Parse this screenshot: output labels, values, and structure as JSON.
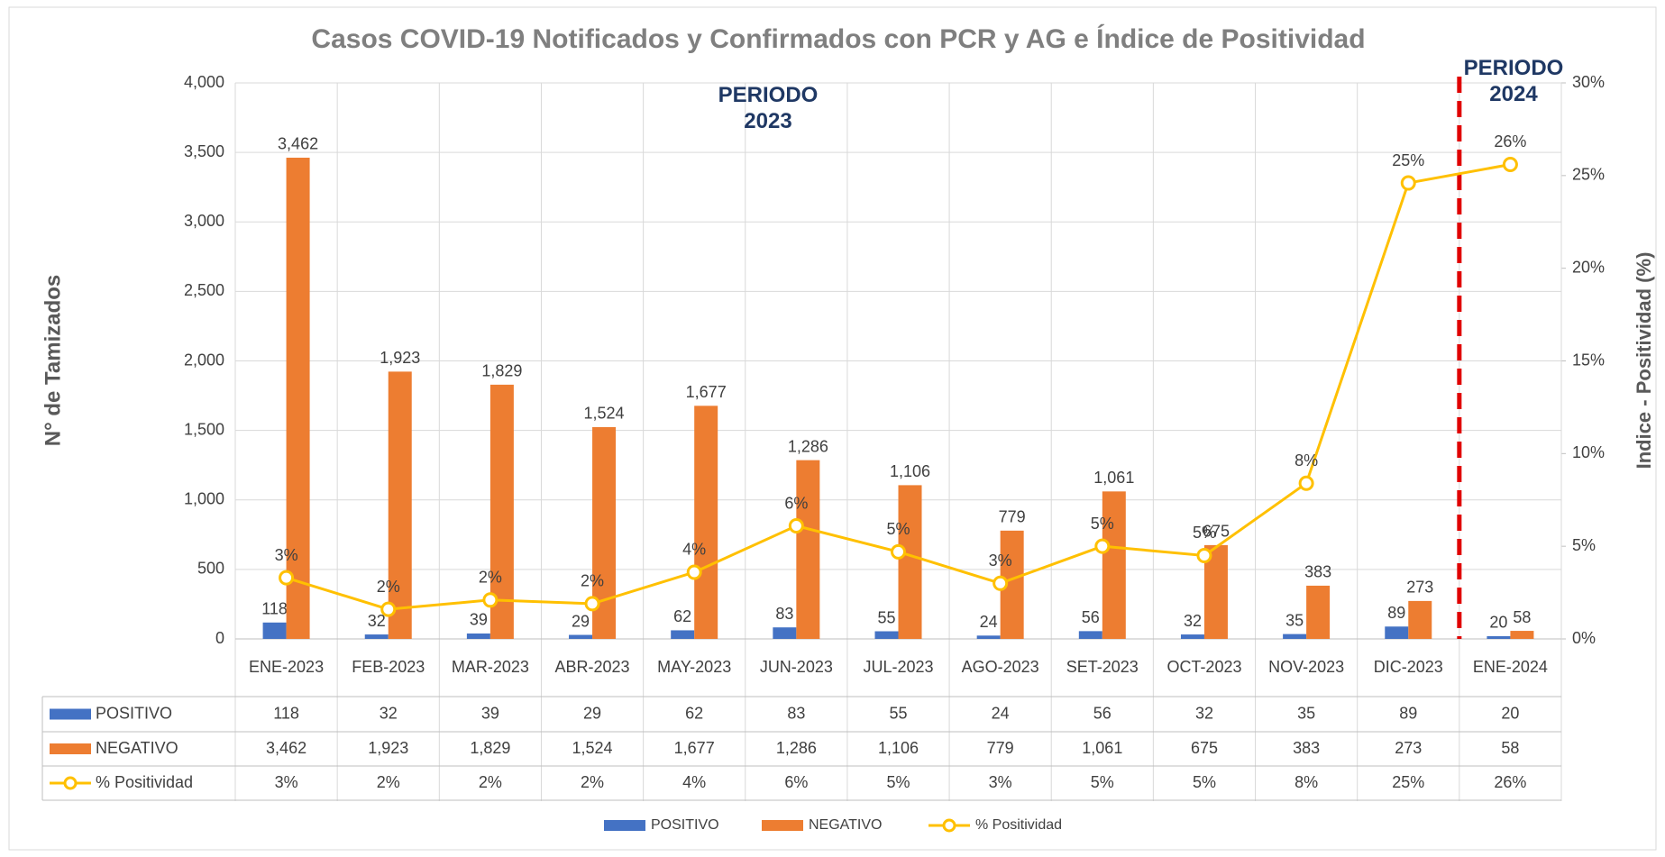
{
  "chart_data": {
    "type": "bar_line_table",
    "title": "Casos COVID-19 Notificados y Confirmados con PCR y AG e Índice de Positividad",
    "y_label": "N° de Tamizados",
    "y2_label": "Indice - Positividad (%)",
    "annotations": [
      "PERIODO 2023",
      "PERIODO 2024"
    ],
    "categories": [
      "ENE-2023",
      "FEB-2023",
      "MAR-2023",
      "ABR-2023",
      "MAY-2023",
      "JUN-2023",
      "JUL-2023",
      "AGO-2023",
      "SET-2023",
      "OCT-2023",
      "NOV-2023",
      "DIC-2023",
      "ENE-2024"
    ],
    "series": [
      {
        "name": "POSITIVO",
        "color": "#4472c4",
        "values": [
          118,
          32,
          39,
          29,
          62,
          83,
          55,
          24,
          56,
          32,
          35,
          89,
          20
        ]
      },
      {
        "name": "NEGATIVO",
        "color": "#ed7d31",
        "values": [
          3462,
          1923,
          1829,
          1524,
          1677,
          1286,
          1106,
          779,
          1061,
          675,
          383,
          273,
          58
        ],
        "value_labels": [
          "3,462",
          "1,923",
          "1,829",
          "1,524",
          "1,677",
          "1,286",
          "1,106",
          "779",
          "1,061",
          "675",
          "383",
          "273",
          "58"
        ]
      },
      {
        "name": "% Positividad",
        "color": "#ffc000",
        "axis": "y2",
        "values": [
          3.3,
          1.6,
          2.1,
          1.9,
          3.6,
          6.1,
          4.7,
          3.0,
          5.0,
          4.5,
          8.4,
          24.6,
          25.6
        ],
        "value_labels": [
          "3%",
          "2%",
          "2%",
          "2%",
          "4%",
          "6%",
          "5%",
          "3%",
          "5%",
          "5%",
          "8%",
          "25%",
          "26%"
        ]
      }
    ],
    "ylim": [
      0,
      4000
    ],
    "yticks": [
      0,
      500,
      {
        "value": 1000,
        "label": "1,000"
      },
      {
        "value": 1500,
        "label": "1,500"
      },
      {
        "value": 2000,
        "label": "2,000"
      },
      {
        "value": 2500,
        "label": "2,500"
      },
      {
        "value": 3000,
        "label": "3,000"
      },
      {
        "value": 3500,
        "label": "3,500"
      },
      {
        "value": 4000,
        "label": "4,000"
      }
    ],
    "y2lim": [
      0,
      30
    ],
    "y2ticks": [
      {
        "value": 0,
        "label": "0%"
      },
      {
        "value": 5,
        "label": "5%"
      },
      {
        "value": 10,
        "label": "10%"
      },
      {
        "value": 15,
        "label": "15%"
      },
      {
        "value": 20,
        "label": "20%"
      },
      {
        "value": 25,
        "label": "25%"
      },
      {
        "value": 30,
        "label": "30%"
      }
    ],
    "grid": true
  }
}
